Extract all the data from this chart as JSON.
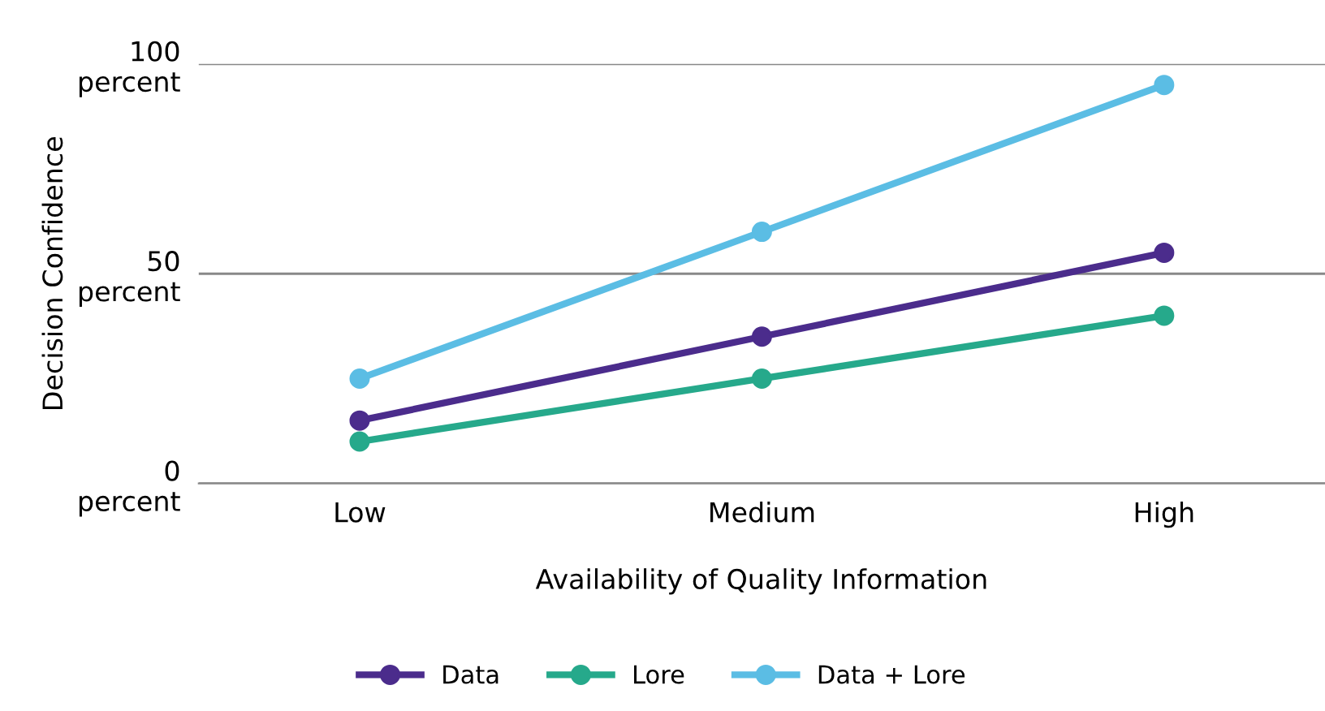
{
  "chart_data": {
    "type": "line",
    "xlabel": "Availability of Quality Information",
    "ylabel": "Decision Confidence",
    "categories": [
      "Low",
      "Medium",
      "High"
    ],
    "series": [
      {
        "name": "Data",
        "color": "#4b2c8c",
        "values": [
          15,
          35,
          55
        ]
      },
      {
        "name": "Lore",
        "color": "#26a98b",
        "values": [
          10,
          25,
          40
        ]
      },
      {
        "name": "Data + Lore",
        "color": "#5bbde4",
        "values": [
          25,
          60,
          95
        ]
      }
    ],
    "ylim": [
      0,
      100
    ],
    "yticks": [
      {
        "value": 0,
        "label": "0\npercent"
      },
      {
        "value": 50,
        "label": "50\npercent"
      },
      {
        "value": 100,
        "label": "100\npercent"
      }
    ],
    "grid": "y",
    "legend": "bottom",
    "marker": "circle",
    "line_style": "solid"
  }
}
